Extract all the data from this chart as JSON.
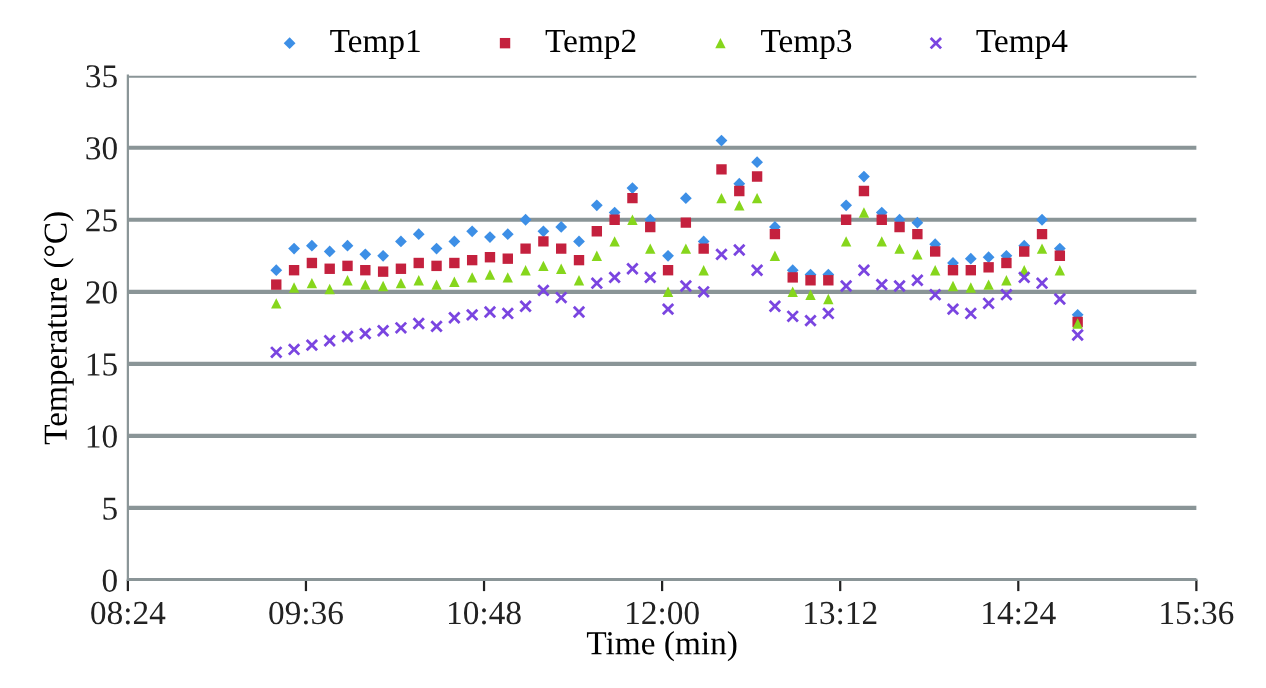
{
  "chart_data": {
    "type": "scatter",
    "xlabel": "Time (min)",
    "ylabel": "Temperature (°C)",
    "x": [
      9.4,
      9.52,
      9.64,
      9.76,
      9.88,
      10.0,
      10.12,
      10.24,
      10.36,
      10.48,
      10.6,
      10.72,
      10.84,
      10.96,
      11.08,
      11.2,
      11.32,
      11.44,
      11.56,
      11.68,
      11.8,
      11.92,
      12.04,
      12.16,
      12.28,
      12.4,
      12.52,
      12.64,
      12.76,
      12.88,
      13.0,
      13.12,
      13.24,
      13.36,
      13.48,
      13.6,
      13.72,
      13.84,
      13.96,
      14.08,
      14.2,
      14.32,
      14.44,
      14.56,
      14.68,
      14.8
    ],
    "series": [
      {
        "name": "Temp1",
        "color": "#3d8fe6",
        "marker": "diamond",
        "values": [
          21.5,
          23.0,
          23.2,
          22.8,
          23.2,
          22.6,
          22.5,
          23.5,
          24.0,
          23.0,
          23.5,
          24.2,
          23.8,
          24.0,
          25.0,
          24.2,
          24.5,
          23.5,
          26.0,
          25.5,
          27.2,
          25.0,
          22.5,
          26.5,
          23.5,
          30.5,
          27.5,
          29.0,
          24.5,
          21.5,
          21.2,
          21.2,
          26.0,
          28.0,
          25.5,
          25.0,
          24.8,
          23.3,
          22.0,
          22.3,
          22.4,
          22.5,
          23.2,
          25.0,
          23.0,
          18.4
        ]
      },
      {
        "name": "Temp2",
        "color": "#c4213e",
        "marker": "square",
        "values": [
          20.5,
          21.5,
          22.0,
          21.6,
          21.8,
          21.5,
          21.4,
          21.6,
          22.0,
          21.8,
          22.0,
          22.2,
          22.4,
          22.3,
          23.0,
          23.5,
          23.0,
          22.2,
          24.2,
          25.0,
          26.5,
          24.5,
          21.5,
          24.8,
          23.0,
          28.5,
          27.0,
          28.0,
          24.0,
          21.0,
          20.8,
          20.8,
          25.0,
          27.0,
          25.0,
          24.5,
          24.0,
          22.8,
          21.5,
          21.5,
          21.7,
          22.0,
          22.8,
          24.0,
          22.5,
          17.9
        ]
      },
      {
        "name": "Temp3",
        "color": "#86d61c",
        "marker": "triangle",
        "values": [
          19.2,
          20.3,
          20.6,
          20.2,
          20.8,
          20.5,
          20.4,
          20.6,
          20.8,
          20.5,
          20.7,
          21.0,
          21.2,
          21.0,
          21.5,
          21.8,
          21.6,
          20.8,
          22.5,
          23.5,
          25.0,
          23.0,
          20.0,
          23.0,
          21.5,
          26.5,
          26.0,
          26.5,
          22.5,
          20.0,
          19.8,
          19.5,
          23.5,
          25.5,
          23.5,
          23.0,
          22.6,
          21.5,
          20.4,
          20.3,
          20.5,
          20.8,
          21.5,
          23.0,
          21.5,
          17.8
        ]
      },
      {
        "name": "Temp4",
        "color": "#7a45e0",
        "marker": "cross",
        "values": [
          15.8,
          16.0,
          16.3,
          16.6,
          16.9,
          17.1,
          17.3,
          17.5,
          17.8,
          17.6,
          18.2,
          18.4,
          18.6,
          18.5,
          19.0,
          20.1,
          19.6,
          18.6,
          20.6,
          21.0,
          21.6,
          21.0,
          18.8,
          20.4,
          20.0,
          22.6,
          22.9,
          21.5,
          19.0,
          18.3,
          18.0,
          18.5,
          20.4,
          21.5,
          20.5,
          20.4,
          20.8,
          19.8,
          18.8,
          18.5,
          19.2,
          19.8,
          21.0,
          20.6,
          19.5,
          17.0
        ]
      }
    ],
    "xlim": [
      8.4,
      15.6
    ],
    "xticks": [
      {
        "value": 8.4,
        "label": "08:24"
      },
      {
        "value": 9.6,
        "label": "09:36"
      },
      {
        "value": 10.8,
        "label": "10:48"
      },
      {
        "value": 12.0,
        "label": "12:00"
      },
      {
        "value": 13.2,
        "label": "13:12"
      },
      {
        "value": 14.4,
        "label": "14:24"
      },
      {
        "value": 15.6,
        "label": "15:36"
      }
    ],
    "ylim": [
      0,
      35
    ],
    "yticks": [
      0,
      5,
      10,
      15,
      20,
      25,
      30,
      35
    ],
    "grid": "y",
    "legend": "top"
  }
}
